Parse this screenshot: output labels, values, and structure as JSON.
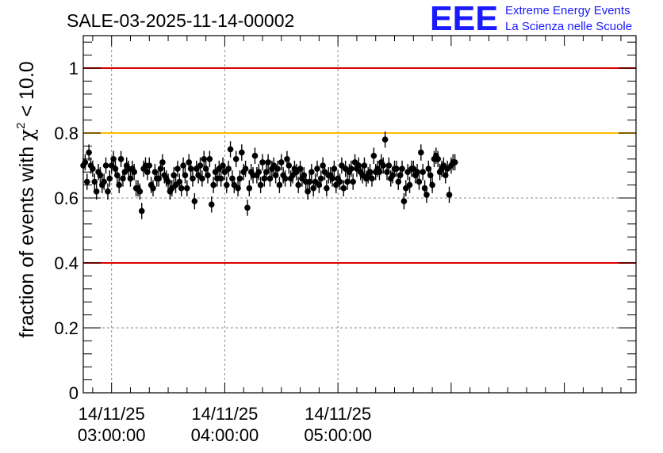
{
  "logo": {
    "mark": "EEE",
    "line1": "Extreme Energy Events",
    "line2": "La Scienza nelle Scuole",
    "color": "#1a1aff"
  },
  "chart_data": {
    "type": "scatter",
    "title": "SALE-03-2025-11-14-00002",
    "xlabel": "",
    "ylabel": "fraction of events with χ² < 10.0",
    "ylabel_parts": {
      "pre": "fraction of events with ",
      "sym": "χ",
      "sup": "2",
      "post": " < 10.0"
    },
    "xlim_minutes": [
      -15,
      278
    ],
    "ylim": [
      0,
      1.1
    ],
    "yticks": [
      {
        "value": 0,
        "label": "0"
      },
      {
        "value": 0.2,
        "label": "0.2"
      },
      {
        "value": 0.4,
        "label": "0.4"
      },
      {
        "value": 0.6,
        "label": "0.6"
      },
      {
        "value": 0.8,
        "label": "0.8"
      },
      {
        "value": 1.0,
        "label": "1"
      }
    ],
    "xticks": [
      {
        "minute": 0,
        "date": "14/11/25",
        "time": "03:00:00"
      },
      {
        "minute": 60,
        "date": "14/11/25",
        "time": "04:00:00"
      },
      {
        "minute": 120,
        "date": "14/11/25",
        "time": "05:00:00"
      }
    ],
    "grid": true,
    "reference_lines": [
      {
        "y": 1.0,
        "color": "#dd0000"
      },
      {
        "y": 0.8,
        "color": "#ffbb00"
      },
      {
        "y": 0.4,
        "color": "#dd0000"
      }
    ],
    "error_bar": 0.025,
    "series": [
      {
        "name": "fraction",
        "x_start_minute": -15,
        "x_step_minutes": 1,
        "values": [
          0.7,
          0.71,
          0.65,
          0.74,
          0.7,
          0.69,
          0.65,
          0.62,
          0.68,
          0.67,
          0.64,
          0.65,
          0.7,
          0.62,
          0.66,
          0.7,
          0.72,
          0.69,
          0.67,
          0.64,
          0.72,
          0.66,
          0.68,
          0.7,
          0.69,
          0.66,
          0.69,
          0.68,
          0.63,
          0.63,
          0.62,
          0.56,
          0.69,
          0.7,
          0.68,
          0.7,
          0.64,
          0.63,
          0.68,
          0.66,
          0.66,
          0.69,
          0.71,
          0.67,
          0.66,
          0.65,
          0.62,
          0.63,
          0.67,
          0.64,
          0.69,
          0.65,
          0.63,
          0.7,
          0.67,
          0.63,
          0.71,
          0.69,
          0.66,
          0.59,
          0.69,
          0.67,
          0.7,
          0.66,
          0.72,
          0.69,
          0.67,
          0.72,
          0.58,
          0.64,
          0.68,
          0.66,
          0.69,
          0.66,
          0.7,
          0.68,
          0.64,
          0.69,
          0.75,
          0.66,
          0.64,
          0.72,
          0.63,
          0.66,
          0.74,
          0.68,
          0.69,
          0.57,
          0.63,
          0.68,
          0.67,
          0.73,
          0.67,
          0.68,
          0.64,
          0.71,
          0.66,
          0.68,
          0.71,
          0.66,
          0.69,
          0.7,
          0.67,
          0.69,
          0.64,
          0.71,
          0.67,
          0.66,
          0.72,
          0.7,
          0.66,
          0.67,
          0.69,
          0.68,
          0.64,
          0.69,
          0.66,
          0.67,
          0.65,
          0.62,
          0.65,
          0.68,
          0.63,
          0.65,
          0.69,
          0.64,
          0.66,
          0.7,
          0.68,
          0.63,
          0.67,
          0.67,
          0.66,
          0.69,
          0.64,
          0.66,
          0.65,
          0.7,
          0.63,
          0.69,
          0.65,
          0.68,
          0.69,
          0.65,
          0.71,
          0.69,
          0.7,
          0.68,
          0.67,
          0.7,
          0.66,
          0.67,
          0.68,
          0.66,
          0.73,
          0.68,
          0.69,
          0.68,
          0.71,
          0.7,
          0.78,
          0.68,
          0.7,
          0.66,
          0.67,
          0.69,
          0.69,
          0.65,
          0.67,
          0.69,
          0.59,
          0.63,
          0.68,
          0.64,
          0.69,
          0.69,
          0.67,
          0.68,
          0.65,
          0.74,
          0.68,
          0.63,
          0.61,
          0.69,
          0.67,
          0.64,
          0.72,
          0.73,
          0.72,
          0.68,
          0.69,
          0.7,
          0.67,
          0.69,
          0.61,
          0.7,
          0.71,
          0.71
        ]
      }
    ]
  }
}
